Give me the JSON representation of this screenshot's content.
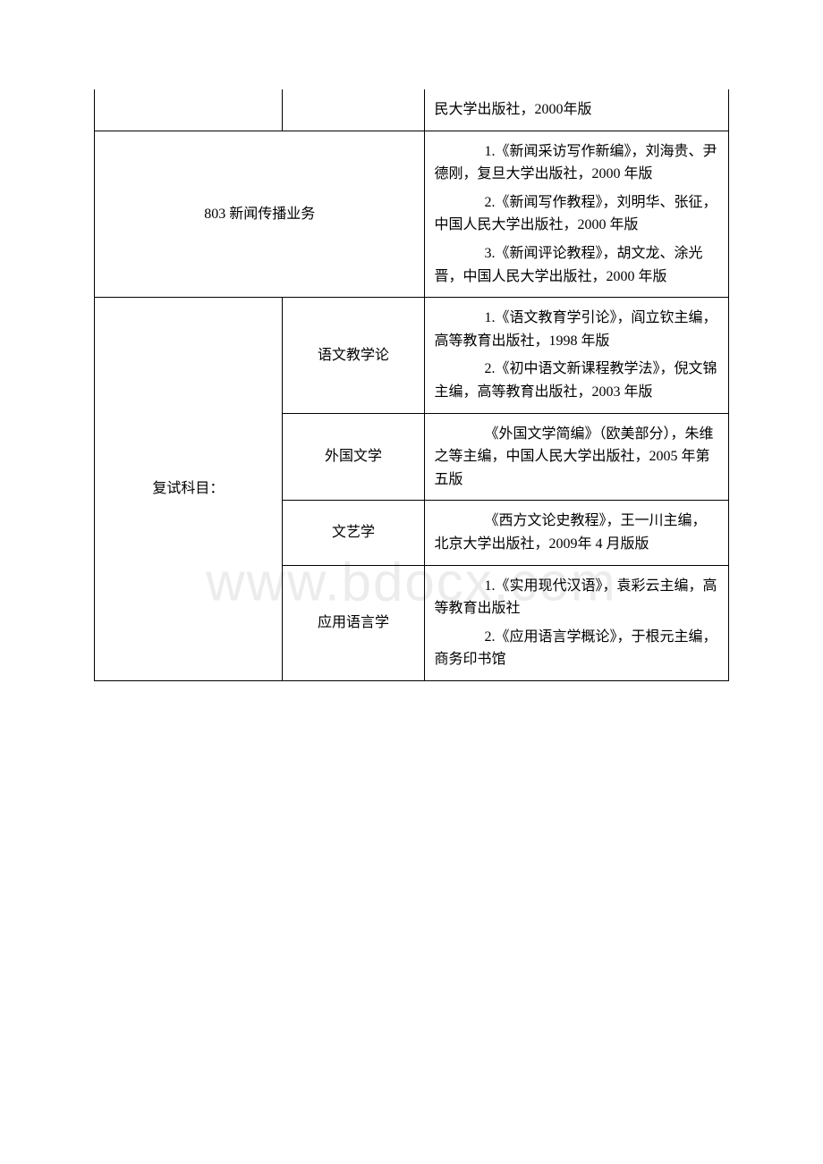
{
  "watermark": "www.bdocx.com",
  "table": {
    "rows": [
      {
        "col1": "",
        "col2": "",
        "col3_items": [
          "民大学出版社，2000年版"
        ]
      },
      {
        "col1_merged": "803 新闻传播业务",
        "col3_items": [
          "1.《新闻采访写作新编》，刘海贵、尹德刚，复旦大学出版社，2000 年版",
          "2.《新闻写作教程》，刘明华、张征，中国人民大学出版社，2000 年版",
          "3.《新闻评论教程》，胡文龙、涂光晋，中国人民大学出版社，2000 年版"
        ]
      },
      {
        "col1": "复试科目：",
        "sub_rows": [
          {
            "col2": "语文教学论",
            "col3_items": [
              "1.《语文教育学引论》，阎立钦主编，高等教育出版社，1998 年版",
              "2.《初中语文新课程教学法》，倪文锦主编，高等教育出版社，2003 年版"
            ]
          },
          {
            "col2": "外国文学",
            "col3_items": [
              "《外国文学简编》（欧美部分），朱维之等主编，中国人民大学出版社，2005 年第五版"
            ]
          },
          {
            "col2": "文艺学",
            "col3_items": [
              "《西方文论史教程》，王一川主编，北京大学出版社，2009年 4 月版版"
            ]
          },
          {
            "col2": "应用语言学",
            "col3_items": [
              "1.《实用现代汉语》，袁彩云主编，高等教育出版社",
              "2.《应用语言学概论》，于根元主编，商务印书馆"
            ]
          }
        ]
      }
    ]
  }
}
